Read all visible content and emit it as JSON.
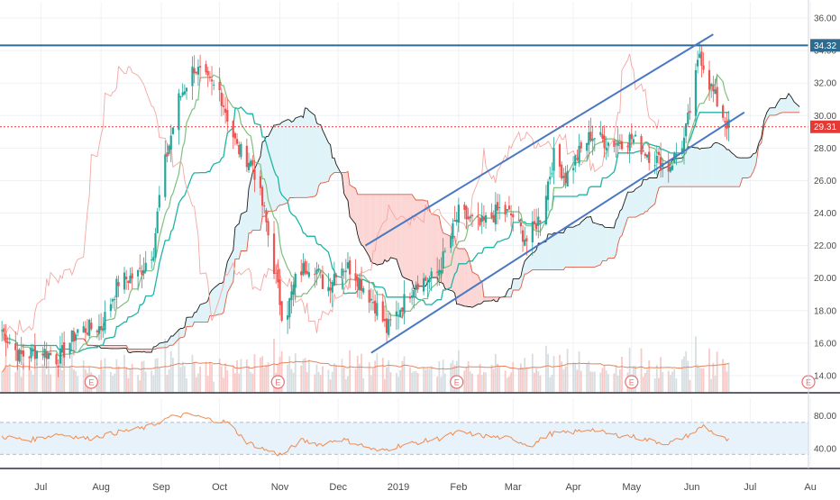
{
  "chart_data": [
    {
      "panel": "price",
      "type": "candlestick",
      "title": "",
      "ylim": [
        13,
        37
      ],
      "xlim": [
        "2018-06-10",
        "2019-07-31"
      ],
      "y_ticks": [
        "14.00",
        "16.00",
        "18.00",
        "20.00",
        "22.00",
        "24.00",
        "26.00",
        "28.00",
        "30.00",
        "32.00",
        "34.00",
        "36.00"
      ],
      "x_ticks": [
        {
          "label": "Jul",
          "date": "2018-07-01"
        },
        {
          "label": "Aug",
          "date": "2018-08-01"
        },
        {
          "label": "Sep",
          "date": "2018-09-01"
        },
        {
          "label": "Oct",
          "date": "2018-10-01"
        },
        {
          "label": "Nov",
          "date": "2018-11-01"
        },
        {
          "label": "Dec",
          "date": "2018-12-01"
        },
        {
          "label": "2019",
          "date": "2019-01-01"
        },
        {
          "label": "Feb",
          "date": "2019-02-01"
        },
        {
          "label": "Mar",
          "date": "2019-03-01"
        },
        {
          "label": "Apr",
          "date": "2019-04-01"
        },
        {
          "label": "May",
          "date": "2019-05-01"
        },
        {
          "label": "Jun",
          "date": "2019-06-01"
        },
        {
          "label": "Jul",
          "date": "2019-07-01"
        },
        {
          "label": "Au",
          "date": "2019-08-01"
        }
      ],
      "price_path": [
        [
          "2018-06-10",
          17.0
        ],
        [
          "2018-06-20",
          15.2
        ],
        [
          "2018-07-01",
          15.6
        ],
        [
          "2018-07-10",
          15.0
        ],
        [
          "2018-07-20",
          16.8
        ],
        [
          "2018-08-01",
          17.0
        ],
        [
          "2018-08-10",
          19.8
        ],
        [
          "2018-08-20",
          20.2
        ],
        [
          "2018-08-28",
          21.8
        ],
        [
          "2018-09-01",
          26.0
        ],
        [
          "2018-09-10",
          31.0
        ],
        [
          "2018-09-18",
          33.0
        ],
        [
          "2018-09-25",
          32.0
        ],
        [
          "2018-10-01",
          31.5
        ],
        [
          "2018-10-10",
          28.0
        ],
        [
          "2018-10-18",
          27.0
        ],
        [
          "2018-10-24",
          24.0
        ],
        [
          "2018-10-30",
          20.0
        ],
        [
          "2018-11-03",
          17.2
        ],
        [
          "2018-11-10",
          20.3
        ],
        [
          "2018-11-18",
          21.0
        ],
        [
          "2018-11-25",
          19.2
        ],
        [
          "2018-12-01",
          20.8
        ],
        [
          "2018-12-08",
          20.6
        ],
        [
          "2018-12-15",
          19.3
        ],
        [
          "2018-12-22",
          18.0
        ],
        [
          "2018-12-26",
          16.8
        ],
        [
          "2019-01-02",
          18.2
        ],
        [
          "2019-01-10",
          19.8
        ],
        [
          "2019-01-20",
          20.0
        ],
        [
          "2019-01-25",
          21.5
        ],
        [
          "2019-02-01",
          24.0
        ],
        [
          "2019-02-12",
          23.2
        ],
        [
          "2019-02-22",
          24.2
        ],
        [
          "2019-03-01",
          23.8
        ],
        [
          "2019-03-08",
          22.3
        ],
        [
          "2019-03-15",
          23.8
        ],
        [
          "2019-03-22",
          27.5
        ],
        [
          "2019-03-28",
          26.2
        ],
        [
          "2019-04-03",
          27.5
        ],
        [
          "2019-04-10",
          28.8
        ],
        [
          "2019-04-20",
          28.3
        ],
        [
          "2019-05-01",
          28.6
        ],
        [
          "2019-05-10",
          27.6
        ],
        [
          "2019-05-20",
          26.8
        ],
        [
          "2019-05-28",
          28.5
        ],
        [
          "2019-06-02",
          31.5
        ],
        [
          "2019-06-05",
          33.9
        ],
        [
          "2019-06-10",
          32.0
        ],
        [
          "2019-06-15",
          30.5
        ],
        [
          "2019-06-20",
          29.31
        ]
      ],
      "horizontal_lines": [
        {
          "value": 34.32,
          "label": "34.32",
          "color": "#2f6b8f",
          "style": "solid"
        },
        {
          "value": 29.31,
          "label": "29.31",
          "color": "#e53935",
          "style": "dotted"
        }
      ],
      "trend_channel": {
        "color": "#4a78c2",
        "upper": [
          [
            "2018-12-15",
            22.0
          ],
          [
            "2019-06-12",
            35.0
          ]
        ],
        "lower": [
          [
            "2018-12-18",
            15.4
          ],
          [
            "2019-06-28",
            30.2
          ]
        ]
      },
      "event_markers": [
        {
          "label": "E",
          "date": "2018-07-27"
        },
        {
          "label": "E",
          "date": "2018-10-31"
        },
        {
          "label": "E",
          "date": "2019-01-31"
        },
        {
          "label": "E",
          "date": "2019-05-01"
        },
        {
          "label": "E",
          "date": "2019-07-31"
        }
      ],
      "colors": {
        "up": "#26a69a",
        "down": "#ef5350",
        "cloud_bull": "#dff3f8",
        "cloud_bear": "#fbd6d4"
      }
    },
    {
      "panel": "oscillator",
      "type": "line",
      "title": "",
      "ylim": [
        20,
        95
      ],
      "y_ticks": [
        "80.00",
        "40.00"
      ],
      "band": [
        33,
        72
      ],
      "color": "#f08a4b",
      "values": [
        [
          "2018-06-10",
          55
        ],
        [
          "2018-06-25",
          50
        ],
        [
          "2018-07-10",
          58
        ],
        [
          "2018-07-25",
          52
        ],
        [
          "2018-08-10",
          60
        ],
        [
          "2018-08-25",
          66
        ],
        [
          "2018-09-05",
          78
        ],
        [
          "2018-09-15",
          82
        ],
        [
          "2018-09-25",
          76
        ],
        [
          "2018-10-05",
          72
        ],
        [
          "2018-10-15",
          48
        ],
        [
          "2018-10-25",
          38
        ],
        [
          "2018-11-02",
          32
        ],
        [
          "2018-11-12",
          50
        ],
        [
          "2018-11-22",
          45
        ],
        [
          "2018-12-02",
          52
        ],
        [
          "2018-12-12",
          45
        ],
        [
          "2018-12-22",
          36
        ],
        [
          "2019-01-02",
          44
        ],
        [
          "2019-01-12",
          48
        ],
        [
          "2019-01-22",
          52
        ],
        [
          "2019-02-01",
          60
        ],
        [
          "2019-02-15",
          55
        ],
        [
          "2019-03-01",
          52
        ],
        [
          "2019-03-10",
          43
        ],
        [
          "2019-03-20",
          58
        ],
        [
          "2019-04-01",
          60
        ],
        [
          "2019-04-10",
          64
        ],
        [
          "2019-04-20",
          57
        ],
        [
          "2019-05-01",
          55
        ],
        [
          "2019-05-10",
          50
        ],
        [
          "2019-05-20",
          46
        ],
        [
          "2019-06-01",
          58
        ],
        [
          "2019-06-07",
          68
        ],
        [
          "2019-06-14",
          56
        ],
        [
          "2019-06-22",
          47
        ]
      ]
    }
  ]
}
